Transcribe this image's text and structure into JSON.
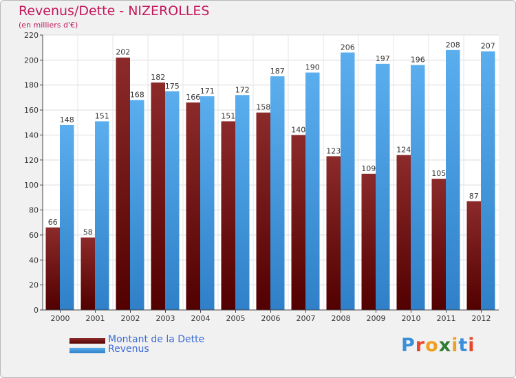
{
  "chart_data": {
    "type": "bar",
    "title": "Revenus/Dette - NIZEROLLES",
    "subtitle": "(en milliers d'€)",
    "categories": [
      "2000",
      "2001",
      "2002",
      "2003",
      "2004",
      "2005",
      "2006",
      "2007",
      "2008",
      "2009",
      "2010",
      "2011",
      "2012"
    ],
    "series": [
      {
        "name": "Montant de la Dette",
        "color": "#7a1515",
        "values": [
          66,
          58,
          202,
          182,
          166,
          151,
          158,
          140,
          123,
          109,
          124,
          105,
          87
        ]
      },
      {
        "name": "Revenus",
        "color": "#4a9fe6",
        "values": [
          148,
          151,
          168,
          175,
          171,
          172,
          187,
          190,
          206,
          197,
          196,
          208,
          207
        ]
      }
    ],
    "ylim": [
      0,
      220
    ],
    "yticks": [
      0,
      20,
      40,
      60,
      80,
      100,
      120,
      140,
      160,
      180,
      200,
      220
    ],
    "grid": true,
    "legend": "bottom-left"
  },
  "logo": {
    "text": "Proxiti",
    "colors": [
      "#3a8fd8",
      "#e8462a",
      "#f0a020",
      "#2e7d32",
      "#f0a020",
      "#3a8fd8",
      "#e8462a"
    ]
  }
}
